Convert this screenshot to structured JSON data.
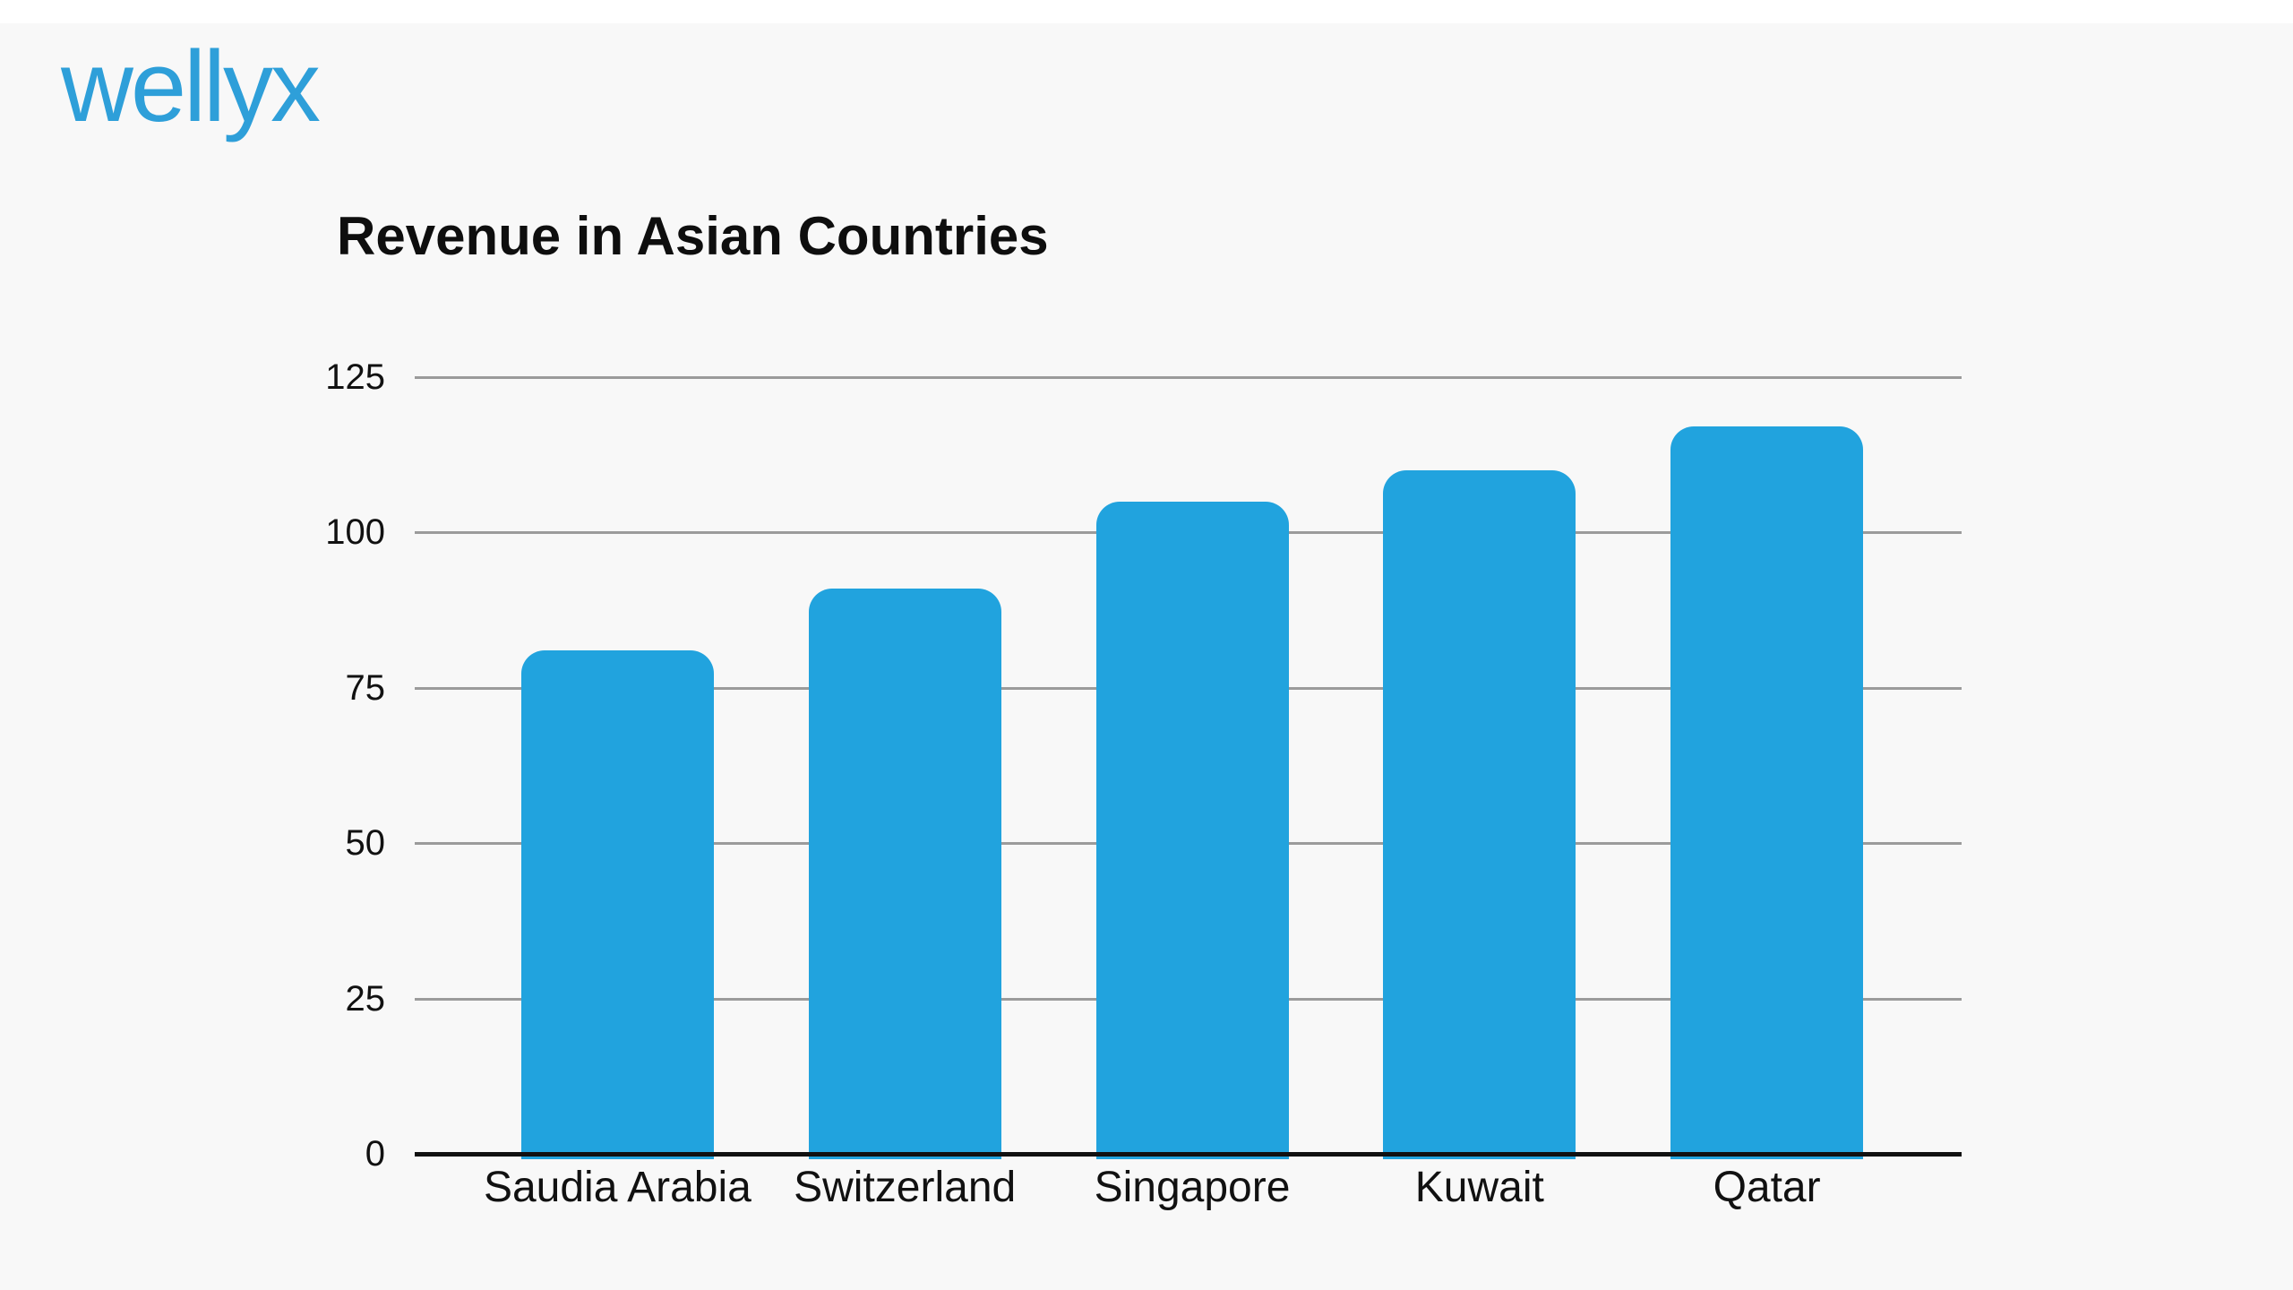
{
  "brand": {
    "logo_text": "wellyx",
    "logo_color": "#2e9fd9"
  },
  "chart_data": {
    "type": "bar",
    "title": "Revenue in Asian Countries",
    "categories": [
      "Saudia Arabia",
      "Switzerland",
      "Singapore",
      "Kuwait",
      "Qatar"
    ],
    "values": [
      81,
      91,
      105,
      110,
      117
    ],
    "xlabel": "",
    "ylabel": "",
    "y_ticks": [
      0,
      25,
      50,
      75,
      100,
      125
    ],
    "ylim": [
      0,
      125
    ],
    "bar_color": "#21a3de",
    "gridline_color": "#9b9b9b",
    "axis_line_color": "#111111",
    "background_color": "#f8f8f8",
    "grid": true,
    "legend": "none"
  }
}
